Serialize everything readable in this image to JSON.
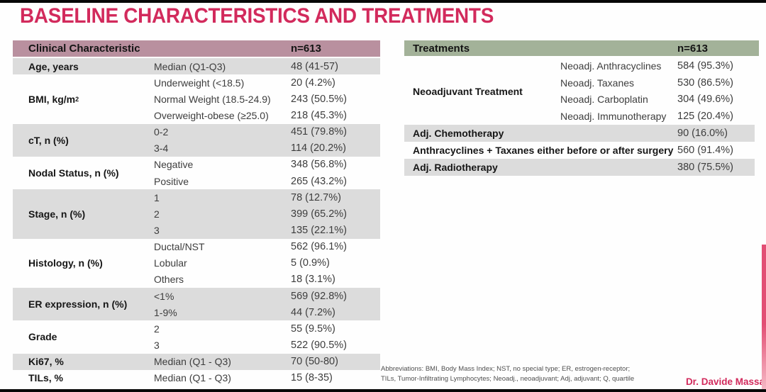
{
  "slide": {
    "title": "BASELINE CHARACTERISTICS AND TREATMENTS",
    "credit": "Dr. Davide Massa",
    "footnote_line1": "Abbreviations: BMI, Body Mass Index; NST, no special type; ER, estrogen-receptor;",
    "footnote_line2": "TILs, Tumor-Infiltrating Lymphocytes; Neoadj., neoadjuvant; Adj, adjuvant; Q, quartile"
  },
  "colors": {
    "title_accent": "#d22a5c",
    "clinical_header_bg": "#b9909f",
    "treatments_header_bg": "#a3b299",
    "shaded_row_bg": "#dcdcdc",
    "edge_strip_top": "#e24e74",
    "edge_strip_bottom": "#f4b7c4"
  },
  "clinical_table": {
    "header": {
      "label": "Clinical Characteristic",
      "n": "n=613"
    },
    "groups": [
      {
        "label": "Age, years",
        "rows": [
          {
            "sub": "Median (Q1-Q3)",
            "value": "48 (41-57)"
          }
        ]
      },
      {
        "label": "BMI, kg/m",
        "label_sup": "2",
        "rows": [
          {
            "sub": "Underweight (<18.5)",
            "value": "20 (4.2%)"
          },
          {
            "sub": "Normal Weight (18.5-24.9)",
            "value": "243 (50.5%)"
          },
          {
            "sub": "Overweight-obese (≥25.0)",
            "value": "218 (45.3%)"
          }
        ]
      },
      {
        "label": "cT, n (%)",
        "rows": [
          {
            "sub": "0-2",
            "value": "451 (79.8%)"
          },
          {
            "sub": "3-4",
            "value": "114 (20.2%)"
          }
        ]
      },
      {
        "label": "Nodal Status, n (%)",
        "rows": [
          {
            "sub": "Negative",
            "value": "348 (56.8%)"
          },
          {
            "sub": "Positive",
            "value": "265 (43.2%)"
          }
        ]
      },
      {
        "label": "Stage, n (%)",
        "rows": [
          {
            "sub": "1",
            "value": "78 (12.7%)"
          },
          {
            "sub": "2",
            "value": "399 (65.2%)"
          },
          {
            "sub": "3",
            "value": "135 (22.1%)"
          }
        ]
      },
      {
        "label": "Histology, n (%)",
        "rows": [
          {
            "sub": "Ductal/NST",
            "value": "562 (96.1%)"
          },
          {
            "sub": "Lobular",
            "value": "5 (0.9%)"
          },
          {
            "sub": "Others",
            "value": "18 (3.1%)"
          }
        ]
      },
      {
        "label": "ER expression, n (%)",
        "rows": [
          {
            "sub": "<1%",
            "value": "569 (92.8%)"
          },
          {
            "sub": "1-9%",
            "value": "44 (7.2%)"
          }
        ]
      },
      {
        "label": "Grade",
        "rows": [
          {
            "sub": "2",
            "value": "55 (9.5%)"
          },
          {
            "sub": "3",
            "value": "522 (90.5%)"
          }
        ]
      },
      {
        "label": "Ki67, %",
        "rows": [
          {
            "sub": "Median (Q1 - Q3)",
            "value": "70 (50-80)"
          }
        ]
      },
      {
        "label": "TILs, %",
        "rows": [
          {
            "sub": "Median (Q1 - Q3)",
            "value": "15 (8-35)"
          }
        ]
      }
    ]
  },
  "treatments_table": {
    "header": {
      "label": "Treatments",
      "n": "n=613"
    },
    "neoadjuvant": {
      "label": "Neoadjuvant Treatment",
      "rows": [
        {
          "sub": "Neoadj. Anthracyclines",
          "value": "584 (95.3%)"
        },
        {
          "sub": "Neoadj. Taxanes",
          "value": "530 (86.5%)"
        },
        {
          "sub": "Neoadj. Carboplatin",
          "value": "304 (49.6%)"
        },
        {
          "sub": "Neoadj. Immunotherapy",
          "value": "125 (20.4%)"
        }
      ]
    },
    "rows": [
      {
        "label": "Adj. Chemotherapy",
        "value": "90 (16.0%)"
      },
      {
        "label": "Anthracyclines + Taxanes either before or after surgery",
        "value": "560 (91.4%)"
      },
      {
        "label": "Adj. Radiotherapy",
        "value": "380 (75.5%)"
      }
    ]
  }
}
